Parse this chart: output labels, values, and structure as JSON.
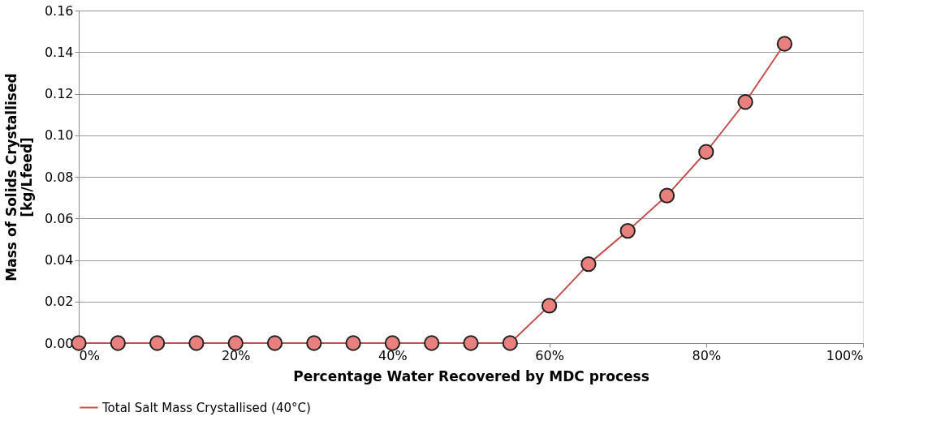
{
  "chart_data": {
    "type": "line",
    "xlabel": "Percentage Water Recovered by MDC process",
    "ylabel": "Mass of Solids Crystallised\n[kg/Lfeed]",
    "x": [
      0,
      5,
      10,
      15,
      20,
      25,
      30,
      35,
      40,
      45,
      50,
      55,
      60,
      65,
      70,
      75,
      80,
      85,
      90
    ],
    "series": [
      {
        "name": "Total Salt Mass Crystallised (40°C)",
        "color": "#c0504d",
        "values": [
          0,
          0,
          0,
          0,
          0,
          0,
          0,
          0,
          0,
          0,
          0,
          0,
          0.018,
          0.038,
          0.054,
          0.071,
          0.092,
          0.116,
          0.144
        ]
      }
    ],
    "xlim": [
      0,
      100
    ],
    "xticks": [
      {
        "value": 0,
        "label": "0%"
      },
      {
        "value": 20,
        "label": "20%"
      },
      {
        "value": 40,
        "label": "40%"
      },
      {
        "value": 60,
        "label": "60%"
      },
      {
        "value": 80,
        "label": "80%"
      },
      {
        "value": 100,
        "label": "100%"
      }
    ],
    "ylim": [
      0,
      0.16
    ],
    "yticks": [
      {
        "value": 0,
        "label": "0.00"
      },
      {
        "value": 0.02,
        "label": "0.02"
      },
      {
        "value": 0.04,
        "label": "0.04"
      },
      {
        "value": 0.06,
        "label": "0.06"
      },
      {
        "value": 0.08,
        "label": "0.08"
      },
      {
        "value": 0.1,
        "label": "0.10"
      },
      {
        "value": 0.12,
        "label": "0.12"
      },
      {
        "value": 0.14,
        "label": "0.14"
      },
      {
        "value": 0.16,
        "label": "0.16"
      }
    ],
    "grid": "y",
    "legend": "bottom",
    "marker": "circle",
    "line_style": "solid"
  }
}
